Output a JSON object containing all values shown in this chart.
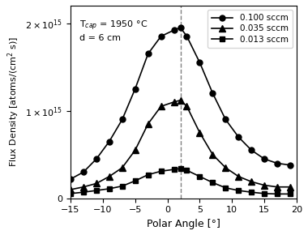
{
  "title_annotation": "T$_{cap}$ = 1950 °C\nd = 6 cm",
  "xlabel": "Polar Angle [°]",
  "ylabel": "Flux Density [atoms/(cm$^2$ s)]",
  "xlim": [
    -15,
    20
  ],
  "ylim": [
    0,
    2200000000000000.0
  ],
  "dashed_x": 2,
  "series": [
    {
      "label": "0.100 sccm",
      "marker": "o",
      "markersize": 5,
      "color": "black",
      "linewidth": 1.2,
      "angles": [
        -15,
        -13,
        -11,
        -9,
        -7,
        -5,
        -3,
        -1,
        1,
        2,
        3,
        5,
        7,
        9,
        11,
        13,
        15,
        17,
        19
      ],
      "values": [
        220000000000000.0,
        300000000000000.0,
        450000000000000.0,
        650000000000000.0,
        900000000000000.0,
        1250000000000000.0,
        1650000000000000.0,
        1850000000000000.0,
        1920000000000000.0,
        1950000000000000.0,
        1850000000000000.0,
        1550000000000000.0,
        1200000000000000.0,
        900000000000000.0,
        700000000000000.0,
        550000000000000.0,
        450000000000000.0,
        400000000000000.0,
        380000000000000.0
      ]
    },
    {
      "label": "0.035 sccm",
      "marker": "^",
      "markersize": 6,
      "color": "black",
      "linewidth": 1.2,
      "angles": [
        -15,
        -13,
        -11,
        -9,
        -7,
        -5,
        -3,
        -1,
        1,
        2,
        3,
        5,
        7,
        9,
        11,
        13,
        15,
        17,
        19
      ],
      "values": [
        100000000000000.0,
        130000000000000.0,
        170000000000000.0,
        250000000000000.0,
        350000000000000.0,
        550000000000000.0,
        850000000000000.0,
        1050000000000000.0,
        1100000000000000.0,
        1120000000000000.0,
        1050000000000000.0,
        750000000000000.0,
        500000000000000.0,
        350000000000000.0,
        250000000000000.0,
        190000000000000.0,
        150000000000000.0,
        130000000000000.0,
        130000000000000.0
      ]
    },
    {
      "label": "0.013 sccm",
      "marker": "s",
      "markersize": 5,
      "color": "black",
      "linewidth": 1.2,
      "angles": [
        -15,
        -13,
        -11,
        -9,
        -7,
        -5,
        -3,
        -1,
        1,
        2,
        3,
        5,
        7,
        9,
        11,
        13,
        15,
        17,
        19
      ],
      "values": [
        55000000000000.0,
        70000000000000.0,
        90000000000000.0,
        110000000000000.0,
        140000000000000.0,
        200000000000000.0,
        270000000000000.0,
        310000000000000.0,
        330000000000000.0,
        340000000000000.0,
        320000000000000.0,
        250000000000000.0,
        180000000000000.0,
        120000000000000.0,
        90000000000000.0,
        70000000000000.0,
        55000000000000.0,
        50000000000000.0,
        50000000000000.0
      ]
    }
  ]
}
